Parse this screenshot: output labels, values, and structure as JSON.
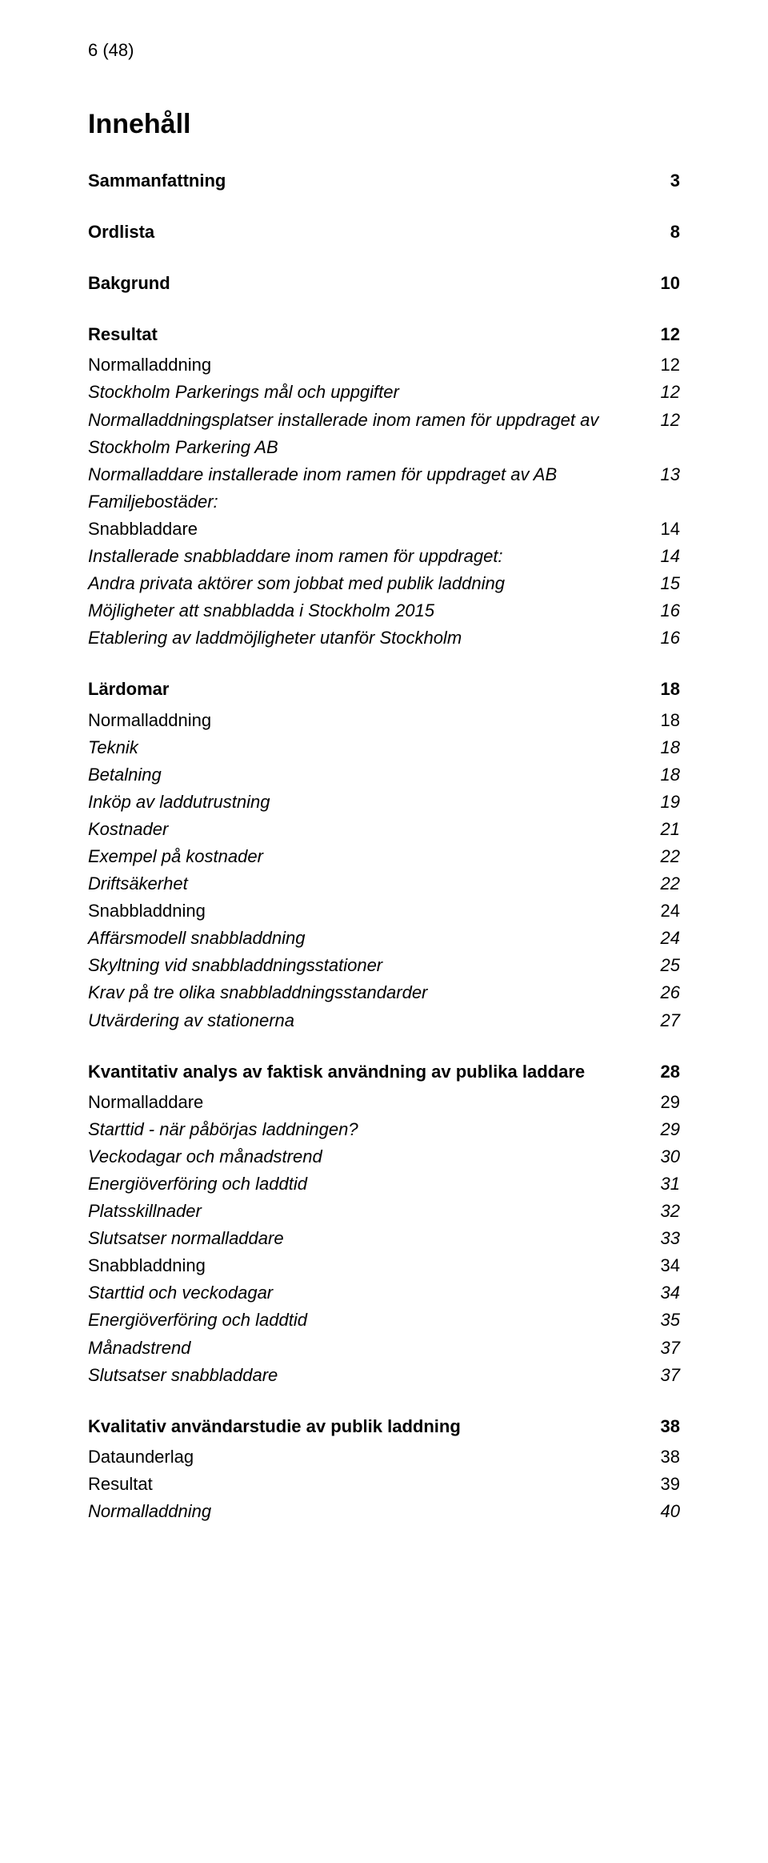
{
  "pageNumber": "6 (48)",
  "mainTitle": "Innehåll",
  "style": {
    "fontFamily": "Arial, Helvetica, sans-serif",
    "textColor": "#000000",
    "background": "#ffffff",
    "mainTitleSize": 34,
    "sectionSize": 22,
    "bodySize": 22,
    "lineHeight": 1.55,
    "pageNumberSize": 22
  },
  "toc": [
    {
      "type": "section",
      "label": "Sammanfattning",
      "page": "3",
      "children": []
    },
    {
      "type": "section",
      "label": "Ordlista",
      "page": "8",
      "children": []
    },
    {
      "type": "section",
      "label": "Bakgrund",
      "page": "10",
      "children": []
    },
    {
      "type": "section",
      "label": "Resultat",
      "page": "12",
      "children": [
        {
          "type": "plain",
          "label": "Normalladdning",
          "page": "12"
        },
        {
          "type": "italic",
          "label": "Stockholm Parkerings mål och uppgifter",
          "page": "12"
        },
        {
          "type": "italic",
          "label": "Normalladdningsplatser installerade inom ramen för uppdraget av Stockholm Parkering AB",
          "page": "12"
        },
        {
          "type": "italic",
          "label": "Normalladdare installerade inom ramen för uppdraget av AB Familjebostäder:",
          "page": "13"
        },
        {
          "type": "plain",
          "label": "Snabbladdare",
          "page": "14"
        },
        {
          "type": "italic",
          "label": "Installerade snabbladdare inom ramen för uppdraget:",
          "page": "14"
        },
        {
          "type": "italic",
          "label": "Andra privata aktörer som jobbat med publik laddning",
          "page": "15"
        },
        {
          "type": "italic",
          "label": "Möjligheter att snabbladda i Stockholm 2015",
          "page": "16"
        },
        {
          "type": "italic",
          "label": "Etablering av laddmöjligheter utanför Stockholm",
          "page": "16"
        }
      ]
    },
    {
      "type": "section",
      "label": "Lärdomar",
      "page": "18",
      "children": [
        {
          "type": "plain",
          "label": "Normalladdning",
          "page": "18"
        },
        {
          "type": "italic",
          "label": "Teknik",
          "page": "18"
        },
        {
          "type": "italic",
          "label": "Betalning",
          "page": "18"
        },
        {
          "type": "italic",
          "label": "Inköp av laddutrustning",
          "page": "19"
        },
        {
          "type": "italic",
          "label": "Kostnader",
          "page": "21"
        },
        {
          "type": "italic",
          "label": "Exempel på kostnader",
          "page": "22"
        },
        {
          "type": "italic",
          "label": "Driftsäkerhet",
          "page": "22"
        },
        {
          "type": "plain",
          "label": "Snabbladdning",
          "page": "24"
        },
        {
          "type": "italic",
          "label": "Affärsmodell snabbladdning",
          "page": "24"
        },
        {
          "type": "italic",
          "label": "Skyltning vid snabbladdningsstationer",
          "page": "25"
        },
        {
          "type": "italic",
          "label": "Krav på tre olika snabbladdningsstandarder",
          "page": "26"
        },
        {
          "type": "italic",
          "label": "Utvärdering av stationerna",
          "page": "27"
        }
      ]
    },
    {
      "type": "section",
      "label": "Kvantitativ analys av faktisk användning av publika laddare",
      "page": "28",
      "children": [
        {
          "type": "plain",
          "label": "Normalladdare",
          "page": "29"
        },
        {
          "type": "italic",
          "label": "Starttid - när påbörjas laddningen?",
          "page": "29"
        },
        {
          "type": "italic",
          "label": "Veckodagar och månadstrend",
          "page": "30"
        },
        {
          "type": "italic",
          "label": "Energiöverföring och laddtid",
          "page": "31"
        },
        {
          "type": "italic",
          "label": "Platsskillnader",
          "page": "32"
        },
        {
          "type": "italic",
          "label": "Slutsatser normalladdare",
          "page": "33"
        },
        {
          "type": "plain",
          "label": "Snabbladdning",
          "page": "34"
        },
        {
          "type": "italic",
          "label": "Starttid och veckodagar",
          "page": "34"
        },
        {
          "type": "italic",
          "label": "Energiöverföring och laddtid",
          "page": "35"
        },
        {
          "type": "italic",
          "label": "Månadstrend",
          "page": "37"
        },
        {
          "type": "italic",
          "label": "Slutsatser snabbladdare",
          "page": "37"
        }
      ]
    },
    {
      "type": "section",
      "label": "Kvalitativ användarstudie av publik laddning",
      "page": "38",
      "children": [
        {
          "type": "plain",
          "label": "Dataunderlag",
          "page": "38"
        },
        {
          "type": "plain",
          "label": "Resultat",
          "page": "39"
        },
        {
          "type": "italic",
          "label": "Normalladdning",
          "page": "40"
        }
      ]
    }
  ]
}
